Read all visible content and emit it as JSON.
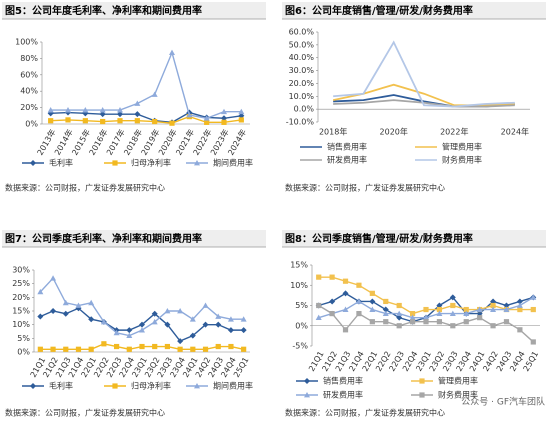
{
  "chart_data": [
    {
      "type": "line",
      "title": "图5：公司年度毛利率、净利率和期间费用率",
      "categories": [
        "2013年",
        "2014年",
        "2015年",
        "2016年",
        "2017年",
        "2018年",
        "2019年",
        "2020年",
        "2021年",
        "2022年",
        "2023年",
        "2024年"
      ],
      "ylim": [
        0,
        100
      ],
      "yticks": [
        {
          "value": 0,
          "label": "0%"
        },
        {
          "value": 20,
          "label": "20%"
        },
        {
          "value": 40,
          "label": "40%"
        },
        {
          "value": 60,
          "label": "60%"
        },
        {
          "value": 80,
          "label": "80%"
        },
        {
          "value": 100,
          "label": "100%"
        }
      ],
      "series": [
        {
          "name": "毛利率",
          "color": "#2e5c9a",
          "marker": "diamond",
          "values": [
            13,
            14,
            13,
            12,
            12,
            12,
            4,
            2,
            14,
            8,
            7,
            10
          ]
        },
        {
          "name": "归母净利率",
          "color": "#f2b921",
          "marker": "square",
          "values": [
            4,
            5,
            4,
            3,
            4,
            4,
            3,
            1,
            9,
            2,
            2,
            5
          ]
        },
        {
          "name": "期间费用率",
          "color": "#8eaadb",
          "marker": "triangle",
          "values": [
            17,
            17,
            17,
            17,
            17,
            25,
            36,
            87,
            11,
            7,
            15,
            15
          ]
        }
      ],
      "source": "数据来源：公司财报，广发证券发展研究中心"
    },
    {
      "type": "line",
      "title": "图6：公司年度销售/管理/研发/财务费用率",
      "categories": [
        "2018年",
        null,
        "2020年",
        null,
        "2022年",
        null,
        "2024年"
      ],
      "ylim": [
        -10,
        60
      ],
      "yticks": [
        {
          "value": -10,
          "label": "-10.0%"
        },
        {
          "value": 0,
          "label": "0.0%"
        },
        {
          "value": 10,
          "label": "10.0%"
        },
        {
          "value": 20,
          "label": "20.0%"
        },
        {
          "value": 30,
          "label": "30.0%"
        },
        {
          "value": 40,
          "label": "40.0%"
        },
        {
          "value": 50,
          "label": "50.0%"
        },
        {
          "value": 60,
          "label": "60.0%"
        }
      ],
      "series": [
        {
          "name": "销售费用率",
          "color": "#2e5c9a",
          "values": [
            6,
            7,
            11,
            6,
            2,
            2,
            4
          ]
        },
        {
          "name": "管理费用率",
          "color": "#f2c14e",
          "values": [
            7,
            12,
            19,
            12,
            3,
            3,
            4
          ]
        },
        {
          "name": "研发费用率",
          "color": "#a6a6a6",
          "values": [
            4,
            5,
            7,
            5,
            2,
            2,
            3
          ]
        },
        {
          "name": "财务费用率",
          "color": "#b4c7e7",
          "values": [
            10,
            12,
            52,
            3,
            2,
            4,
            5
          ]
        }
      ],
      "source": "数据来源：公司财报，广发证券发展研究中心"
    },
    {
      "type": "line",
      "title": "图7：公司季度毛利率、净利率和期间费用率",
      "categories": [
        "21Q1",
        "21Q2",
        "21Q3",
        "21Q4",
        "22Q1",
        "22Q2",
        "22Q3",
        "22Q4",
        "23Q1",
        "23Q2",
        "23Q3",
        "23Q4",
        "24Q1",
        "24Q2",
        "24Q3",
        "24Q4",
        "25Q1"
      ],
      "ylim": [
        0,
        30
      ],
      "yticks": [
        {
          "value": 0,
          "label": "0%"
        },
        {
          "value": 5,
          "label": "5%"
        },
        {
          "value": 10,
          "label": "10%"
        },
        {
          "value": 15,
          "label": "15%"
        },
        {
          "value": 20,
          "label": "20%"
        },
        {
          "value": 25,
          "label": "25%"
        },
        {
          "value": 30,
          "label": "30%"
        }
      ],
      "series": [
        {
          "name": "毛利率",
          "color": "#2e5c9a",
          "marker": "diamond",
          "values": [
            13,
            15,
            14,
            16,
            12,
            11,
            8,
            8,
            10,
            14,
            10,
            4,
            6,
            10,
            10,
            8,
            8
          ]
        },
        {
          "name": "归母净利率",
          "color": "#f2b921",
          "marker": "square",
          "values": [
            1,
            1,
            1,
            1,
            1,
            3,
            2,
            1,
            2,
            2,
            2,
            1,
            1,
            1,
            2,
            2,
            1
          ]
        },
        {
          "name": "期间费用率",
          "color": "#8eaadb",
          "marker": "triangle",
          "values": [
            22,
            27,
            18,
            17,
            18,
            11,
            7,
            6,
            8,
            11,
            15,
            15,
            12,
            17,
            13,
            12,
            12
          ]
        }
      ],
      "source": "数据来源：公司财报，广发证券发展研究中心"
    },
    {
      "type": "line",
      "title": "图8：公司季度销售/管理/研发/财务费用率",
      "categories": [
        "21Q1",
        "21Q2",
        "21Q3",
        "21Q4",
        "22Q1",
        "22Q2",
        "22Q3",
        "22Q4",
        "23Q1",
        "23Q2",
        "23Q3",
        "23Q4",
        "24Q1",
        "24Q2",
        "24Q3",
        "24Q4",
        "25Q1"
      ],
      "ylim": [
        -5,
        15
      ],
      "yticks": [
        {
          "value": -5,
          "label": "-5%"
        },
        {
          "value": 0,
          "label": "0%"
        },
        {
          "value": 5,
          "label": "5%"
        },
        {
          "value": 10,
          "label": "10%"
        },
        {
          "value": 15,
          "label": "15%"
        }
      ],
      "series": [
        {
          "name": "销售费用率",
          "color": "#2e5c9a",
          "marker": "diamond",
          "values": [
            5,
            6,
            8,
            6,
            6,
            4,
            2,
            1,
            2,
            5,
            7,
            3,
            3,
            6,
            5,
            6,
            7
          ]
        },
        {
          "name": "管理费用率",
          "color": "#f2c14e",
          "marker": "square",
          "values": [
            12,
            12,
            11,
            10,
            8,
            6,
            5,
            3,
            4,
            4,
            5,
            4,
            4,
            5,
            4,
            4,
            4
          ]
        },
        {
          "name": "研发费用率",
          "color": "#8eaadb",
          "marker": "triangle",
          "values": [
            2,
            3,
            4,
            6,
            4,
            3,
            3,
            2,
            2,
            3,
            3,
            3,
            4,
            4,
            4,
            5,
            7
          ]
        },
        {
          "name": "财务费用率",
          "color": "#a6a6a6",
          "marker": "square",
          "values": [
            5,
            3,
            -1,
            3,
            1,
            1,
            0,
            1,
            1,
            1,
            0,
            1,
            2,
            0,
            1,
            -1,
            -4
          ]
        }
      ],
      "source": "数据来源：公司财报，广发证券发展研究中心"
    }
  ],
  "watermark": "公众号 · GF汽车团队"
}
